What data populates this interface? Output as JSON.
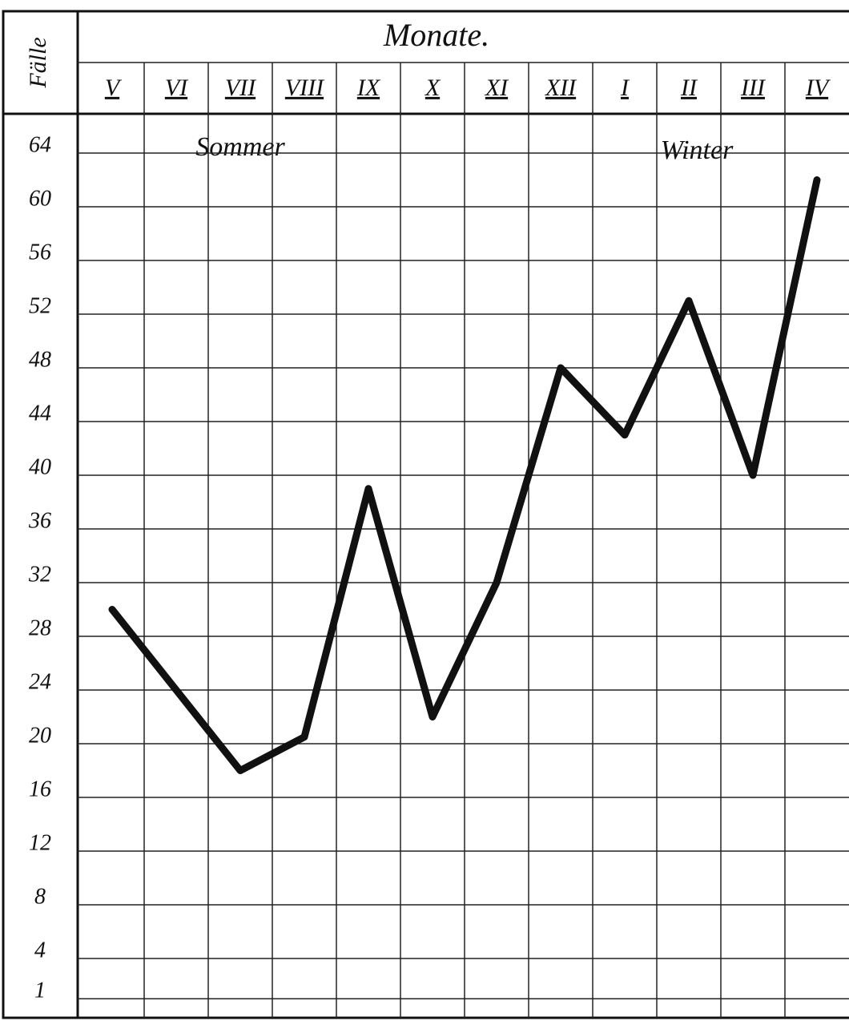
{
  "chart_data": {
    "type": "line",
    "title": "Monate.",
    "y_label": "Fälle",
    "annotations": [
      "Sommer",
      "Winter"
    ],
    "categories": [
      "V",
      "VI",
      "VII",
      "VIII",
      "IX",
      "X",
      "XI",
      "XII",
      "I",
      "II",
      "III",
      "IV"
    ],
    "series": [
      {
        "name": "Fälle",
        "color": "#111111",
        "values": [
          30,
          24,
          18,
          20.5,
          39,
          22,
          32,
          48,
          43,
          53,
          40,
          62
        ]
      }
    ],
    "ylim": [
      0,
      66
    ],
    "yticks": [
      1,
      4,
      8,
      12,
      16,
      20,
      24,
      28,
      32,
      36,
      40,
      44,
      48,
      52,
      56,
      60,
      64
    ],
    "grid": true
  }
}
